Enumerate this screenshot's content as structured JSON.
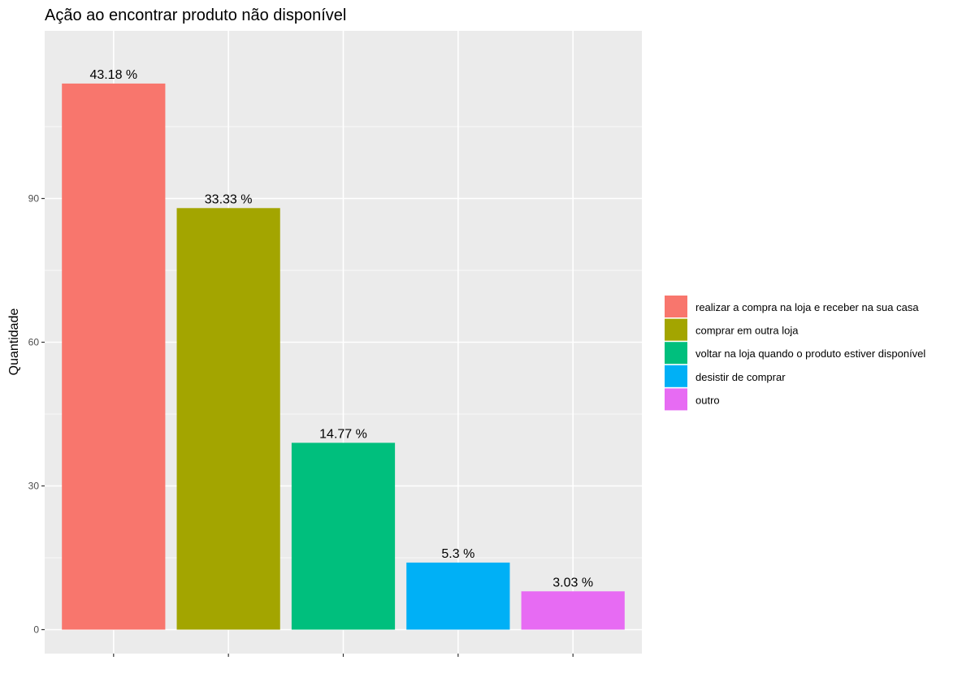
{
  "chart_data": {
    "type": "bar",
    "title": "Ação ao encontrar produto não disponível",
    "xlabel": "",
    "ylabel": "Quantidade",
    "categories": [
      "realizar a compra na loja e receber na sua casa",
      "comprar em outra loja",
      "voltar na loja quando o produto estiver disponível",
      "desistir de comprar",
      "outro"
    ],
    "values": [
      114,
      88,
      39,
      14,
      8
    ],
    "data_labels": [
      "43.18 %",
      "33.33 %",
      "14.77 %",
      "5.3 %",
      "3.03 %"
    ],
    "colors": [
      "#F8766D",
      "#A3A500",
      "#00BF7D",
      "#00B0F6",
      "#E76BF3"
    ],
    "ylim": [
      -5,
      125
    ],
    "yticks": [
      0,
      30,
      60,
      90
    ],
    "grid": true,
    "panel_background": "#EBEBEB",
    "grid_color": "#FFFFFF",
    "legend": {
      "position": "right",
      "entries": [
        "realizar a compra na loja e receber na sua casa",
        "comprar em outra loja",
        "voltar na loja quando o produto estiver disponível",
        "desistir de comprar",
        "outro"
      ]
    }
  }
}
